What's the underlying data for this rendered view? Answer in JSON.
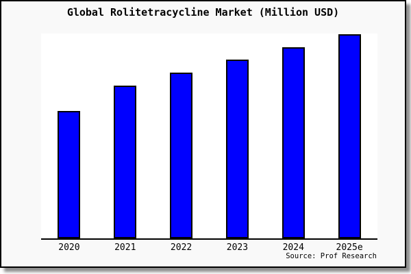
{
  "title": "Global Rolitetracycline Market (Million USD)",
  "source_credit": "Source: Prof Research",
  "colors": {
    "bar_fill": "#0000ff",
    "bar_border": "#000000",
    "figure_background": "#f9f9f9",
    "plot_background": "#ffffff",
    "axis_line": "#000000",
    "text": "#000000",
    "shadow": "#8f8f8f"
  },
  "chart_data": {
    "type": "bar",
    "title": "Global Rolitetracycline Market (Million USD)",
    "categories": [
      "2020",
      "2021",
      "2022",
      "2023",
      "2024",
      "2025e"
    ],
    "values": [
      62.4,
      74.8,
      81.2,
      87.6,
      93.6,
      100
    ],
    "value_note": "Chart has no y-axis, gridlines or data labels; values estimated as percent of the tallest bar (2025e).",
    "xlabel": "",
    "ylabel": "",
    "ylim": [
      0,
      100
    ],
    "grid": false,
    "legend": false,
    "yaxis_visible": false,
    "xaxis_line_visible": true
  }
}
